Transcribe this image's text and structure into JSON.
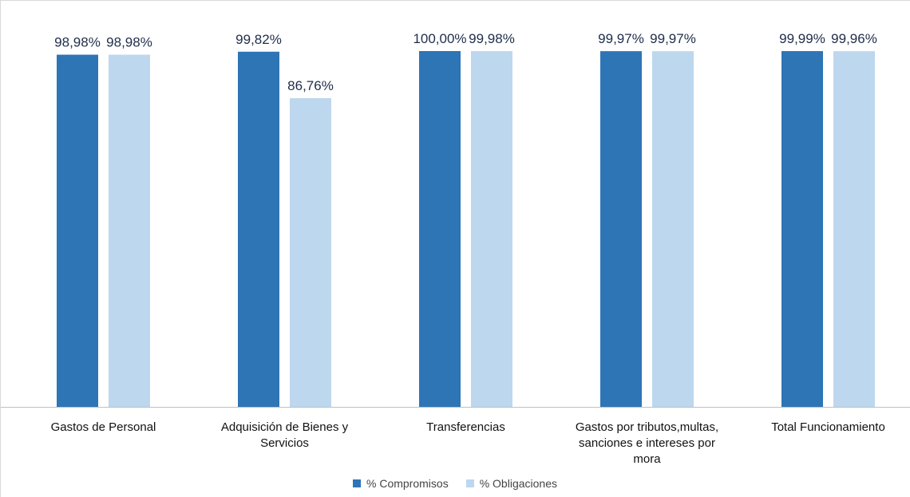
{
  "chart_data": {
    "type": "bar",
    "title": "",
    "xlabel": "",
    "ylabel": "",
    "ylim": [
      0,
      100
    ],
    "grid": false,
    "legend_position": "bottom",
    "categories": [
      "Gastos de Personal",
      "Adquisición de Bienes y Servicios",
      "Transferencias",
      "Gastos por tributos,multas, sanciones e intereses por mora",
      "Total Funcionamiento"
    ],
    "category_lines": [
      [
        "Gastos de Personal"
      ],
      [
        "Adquisición de Bienes y",
        "Servicios"
      ],
      [
        "Transferencias"
      ],
      [
        "Gastos por tributos,multas,",
        "sanciones e intereses por",
        "mora"
      ],
      [
        "Total Funcionamiento"
      ]
    ],
    "series": [
      {
        "name": "% Compromisos",
        "color": "#2e75b6",
        "values": [
          98.98,
          99.82,
          100.0,
          99.97,
          99.99
        ],
        "labels": [
          "98,98%",
          "99,82%",
          "100,00%",
          "99,97%",
          "99,99%"
        ]
      },
      {
        "name": "% Obligaciones",
        "color": "#bdd7ee",
        "values": [
          98.98,
          86.76,
          99.98,
          99.97,
          99.96
        ],
        "labels": [
          "98,98%",
          "86,76%",
          "99,98%",
          "99,97%",
          "99,96%"
        ]
      }
    ]
  }
}
